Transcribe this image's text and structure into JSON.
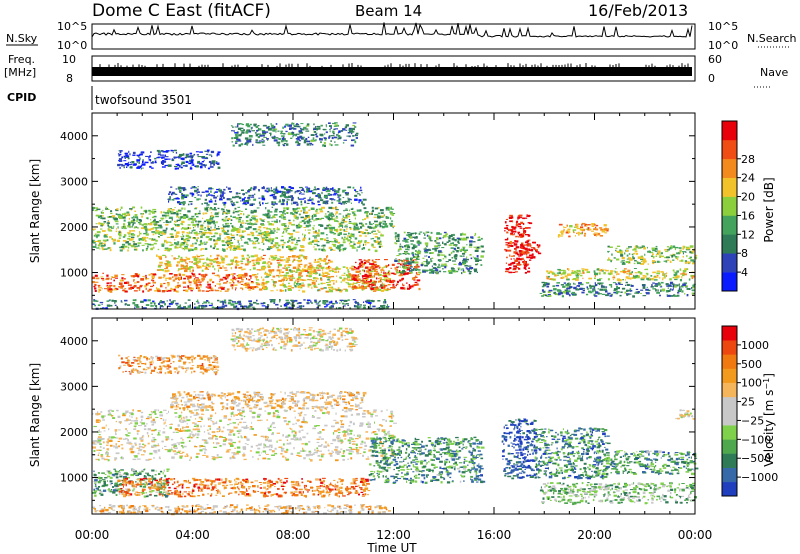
{
  "header": {
    "title": "Dome C East (fitACF)",
    "beam": "Beam 14",
    "date": "16/Feb/2013"
  },
  "top_panels": {
    "nsky_label": "N.Sky",
    "nsky_ticks": [
      "10^5",
      "10^0"
    ],
    "nsearch_label": "N.Search",
    "nsearch_ticks": [
      "10^5",
      "10^0"
    ],
    "freq_label": "Freq.",
    "freq_unit": "[MHz]",
    "freq_ticks": [
      "10",
      "8"
    ],
    "nave_label": "Nave",
    "nave_ticks": [
      "60",
      "0"
    ],
    "cpid_label": "CPID",
    "cpid_value": "twofsound 3501"
  },
  "chart_data": [
    {
      "type": "heatmap",
      "name": "power-panel",
      "ylabel": "Slant Range [km]",
      "xlabel": "",
      "xlim": [
        0,
        24
      ],
      "ylim": [
        200,
        4500
      ],
      "y_ticks": [
        "1000",
        "2000",
        "3000",
        "4000"
      ],
      "y_tick_values": [
        1000,
        2000,
        3000,
        4000
      ],
      "colorbar_label": "Power [dB]",
      "colorbar_ticks": [
        "4",
        "8",
        "12",
        "16",
        "20",
        "24",
        "28"
      ],
      "colorbar_colors": [
        "#0a1cff",
        "#2e43b8",
        "#2f7a57",
        "#43a35c",
        "#8ccf3c",
        "#f2c22a",
        "#f28a1e",
        "#ef4d14",
        "#e8000b"
      ],
      "regions": [
        {
          "t0": 0.0,
          "t1": 11.8,
          "r0": 220,
          "r1": 420,
          "level": 0.25
        },
        {
          "t0": 0.0,
          "t1": 6.5,
          "r0": 600,
          "r1": 1000,
          "level": 0.78
        },
        {
          "t0": 6.5,
          "t1": 11.8,
          "r0": 600,
          "r1": 1150,
          "level": 0.6
        },
        {
          "t0": 10.3,
          "t1": 13.0,
          "r0": 650,
          "r1": 1300,
          "level": 0.88
        },
        {
          "t0": 2.5,
          "t1": 9.5,
          "r0": 1050,
          "r1": 1400,
          "level": 0.62
        },
        {
          "t0": 0.0,
          "t1": 11.5,
          "r0": 1500,
          "r1": 2000,
          "level": 0.48
        },
        {
          "t0": 0.0,
          "t1": 12.0,
          "r0": 2000,
          "r1": 2450,
          "level": 0.42
        },
        {
          "t0": 12.0,
          "t1": 15.5,
          "r0": 1000,
          "r1": 1900,
          "level": 0.35
        },
        {
          "t0": 16.4,
          "t1": 17.4,
          "r0": 1000,
          "r1": 2300,
          "level": 0.95
        },
        {
          "t0": 16.6,
          "t1": 17.8,
          "r0": 1300,
          "r1": 1700,
          "level": 0.9
        },
        {
          "t0": 17.8,
          "t1": 24.0,
          "r0": 500,
          "r1": 800,
          "level": 0.3
        },
        {
          "t0": 18.0,
          "t1": 24.0,
          "r0": 850,
          "r1": 1100,
          "level": 0.55
        },
        {
          "t0": 18.5,
          "t1": 20.5,
          "r0": 1800,
          "r1": 2100,
          "level": 0.7
        },
        {
          "t0": 20.5,
          "t1": 24.0,
          "r0": 1200,
          "r1": 1600,
          "level": 0.48
        },
        {
          "t0": 3.0,
          "t1": 10.8,
          "r0": 2500,
          "r1": 2900,
          "level": 0.22
        },
        {
          "t0": 1.0,
          "t1": 5.0,
          "r0": 3300,
          "r1": 3700,
          "level": 0.12
        },
        {
          "t0": 5.5,
          "t1": 10.5,
          "r0": 3800,
          "r1": 4300,
          "level": 0.28
        }
      ]
    },
    {
      "type": "heatmap",
      "name": "velocity-panel",
      "ylabel": "Slant Range [km]",
      "xlabel": "Time UT",
      "xlim": [
        0,
        24
      ],
      "ylim": [
        200,
        4500
      ],
      "x_ticks": [
        "00:00",
        "04:00",
        "08:00",
        "12:00",
        "16:00",
        "20:00",
        "00:00"
      ],
      "x_tick_values": [
        0,
        4,
        8,
        12,
        16,
        20,
        24
      ],
      "y_ticks": [
        "1000",
        "2000",
        "3000",
        "4000"
      ],
      "y_tick_values": [
        1000,
        2000,
        3000,
        4000
      ],
      "colorbar_label": "Velocity [m s^-1]",
      "colorbar_ticks": [
        "1000",
        "500",
        "100",
        "25",
        "−25",
        "−100",
        "−500",
        "−1000"
      ],
      "colorbar_colors": [
        "#1f3fbf",
        "#3569a8",
        "#2f7a57",
        "#4fa84e",
        "#7fd04a",
        "#c8c8c8",
        "#c8c8c8",
        "#f5b55a",
        "#f29a1e",
        "#f07a10",
        "#ec4810",
        "#e8000b"
      ],
      "regions": [
        {
          "t0": 0.0,
          "t1": 11.8,
          "r0": 220,
          "r1": 420,
          "level": 0.62
        },
        {
          "t0": 0.0,
          "t1": 3.0,
          "r0": 600,
          "r1": 1200,
          "level": 0.3
        },
        {
          "t0": 1.0,
          "t1": 11.0,
          "r0": 600,
          "r1": 1000,
          "level": 0.78
        },
        {
          "t0": 0.0,
          "t1": 12.0,
          "r0": 1400,
          "r1": 2500,
          "level": 0.52
        },
        {
          "t0": 11.0,
          "t1": 15.5,
          "r0": 900,
          "r1": 1900,
          "level": 0.25
        },
        {
          "t0": 16.3,
          "t1": 17.6,
          "r0": 1000,
          "r1": 2300,
          "level": 0.05
        },
        {
          "t0": 17.6,
          "t1": 20.5,
          "r0": 1000,
          "r1": 2100,
          "level": 0.22
        },
        {
          "t0": 17.8,
          "t1": 24.0,
          "r0": 450,
          "r1": 900,
          "level": 0.35
        },
        {
          "t0": 20.0,
          "t1": 24.0,
          "r0": 1100,
          "r1": 1600,
          "level": 0.25
        },
        {
          "t0": 3.0,
          "t1": 10.8,
          "r0": 2500,
          "r1": 2900,
          "level": 0.62
        },
        {
          "t0": 1.0,
          "t1": 5.0,
          "r0": 3300,
          "r1": 3700,
          "level": 0.72
        },
        {
          "t0": 5.5,
          "t1": 10.5,
          "r0": 3800,
          "r1": 4300,
          "level": 0.55
        },
        {
          "t0": 23.0,
          "t1": 23.9,
          "r0": 2300,
          "r1": 2500,
          "level": 0.5
        }
      ]
    }
  ]
}
